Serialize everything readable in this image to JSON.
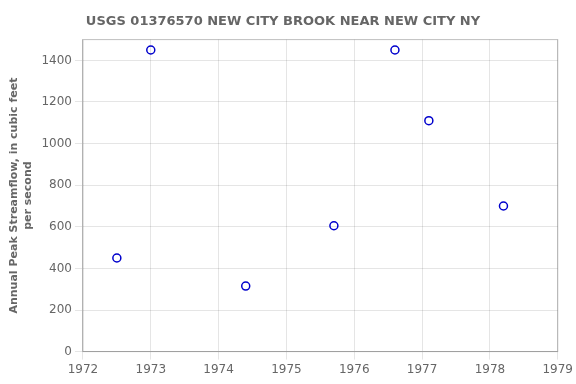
{
  "chart_data": {
    "type": "scatter",
    "title": "USGS 01376570 NEW CITY BROOK NEAR NEW CITY NY",
    "ylabel": "Annual Peak Streamflow, in cubic feet\nper second",
    "x": [
      1972.5,
      1973.0,
      1974.4,
      1975.7,
      1976.6,
      1977.1,
      1978.2
    ],
    "values": [
      450,
      1450,
      315,
      605,
      1450,
      1110,
      700
    ],
    "color": "#0000cc",
    "marker": "circle",
    "xlim": [
      1972,
      1979
    ],
    "ylim": [
      0,
      1500
    ],
    "xticks": [
      1972,
      1973,
      1974,
      1975,
      1976,
      1977,
      1978,
      1979
    ],
    "yticks": [
      0,
      200,
      400,
      600,
      800,
      1000,
      1200,
      1400
    ],
    "grid": true
  }
}
